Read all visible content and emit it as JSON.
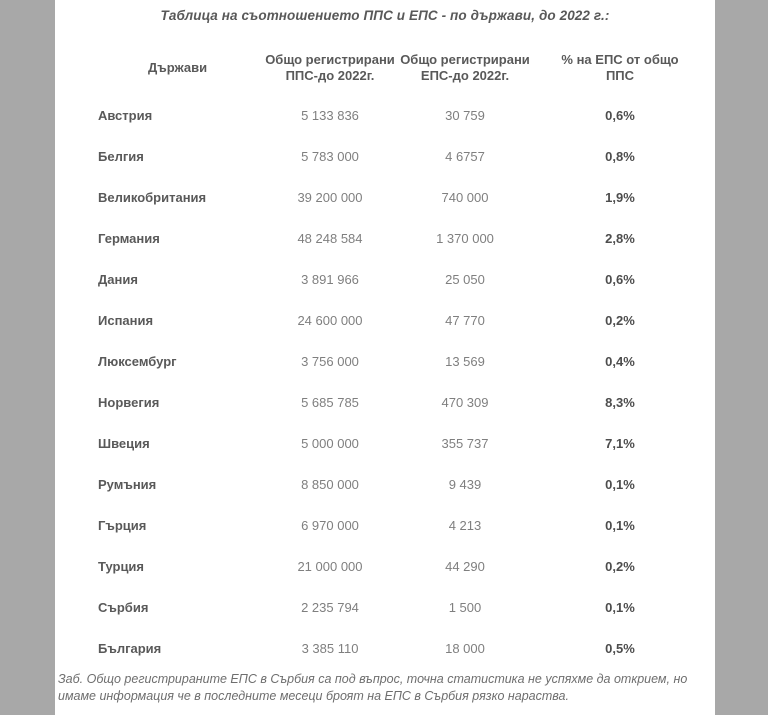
{
  "page": {
    "title": "Таблица на съотношението ППС и ЕПС - по държави, до 2022 г.:",
    "note": "Заб. Общо регистрираните ЕПС в Сърбия са под въпрос, точна статистика не успяхме да открием, но имаме информация че в последните месеци броят на ЕПС в Сърбия рязко нараства."
  },
  "colors": {
    "page_background": "#a8a8a8",
    "sheet_background": "#ffffff",
    "heading_text": "#595959",
    "number_text": "#7f7f7f",
    "percent_text": "#4d4d4d",
    "note_text": "#6e6e6e"
  },
  "table": {
    "headers": {
      "country": "Държави",
      "pps": "Общо регистрирани ППС-до 2022г.",
      "eps": "Общо регистрирани ЕПС-до 2022г.",
      "pct": "% на ЕПС от общо ППС"
    },
    "rows": [
      {
        "country": "Австрия",
        "pps": "5 133 836",
        "eps": "30 759",
        "pct": "0,6%"
      },
      {
        "country": "Белгия",
        "pps": "5 783 000",
        "eps": "4 6757",
        "pct": "0,8%"
      },
      {
        "country": "Великобритания",
        "pps": "39 200 000",
        "eps": "740 000",
        "pct": "1,9%"
      },
      {
        "country": "Германия",
        "pps": "48 248 584",
        "eps": "1 370 000",
        "pct": "2,8%"
      },
      {
        "country": "Дания",
        "pps": "3 891 966",
        "eps": "25 050",
        "pct": "0,6%"
      },
      {
        "country": "Испания",
        "pps": "24 600 000",
        "eps": "47 770",
        "pct": "0,2%"
      },
      {
        "country": "Люксембург",
        "pps": "3 756 000",
        "eps": "13 569",
        "pct": "0,4%"
      },
      {
        "country": "Норвегия",
        "pps": "5 685 785",
        "eps": "470 309",
        "pct": "8,3%"
      },
      {
        "country": "Швеция",
        "pps": "5 000 000",
        "eps": "355 737",
        "pct": "7,1%"
      },
      {
        "country": "Румъния",
        "pps": "8 850 000",
        "eps": "9 439",
        "pct": "0,1%"
      },
      {
        "country": "Гърция",
        "pps": "6 970 000",
        "eps": "4 213",
        "pct": "0,1%"
      },
      {
        "country": "Турция",
        "pps": "21 000 000",
        "eps": "44 290",
        "pct": "0,2%"
      },
      {
        "country": "Сърбия",
        "pps": "2 235 794",
        "eps": "1 500",
        "pct": "0,1%"
      },
      {
        "country": "България",
        "pps": "3 385 110",
        "eps": "18 000",
        "pct": "0,5%"
      }
    ]
  }
}
